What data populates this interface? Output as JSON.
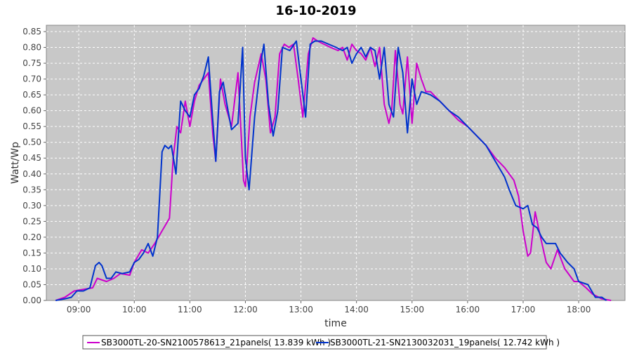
{
  "chart_data": {
    "type": "line",
    "title": "16-10-2019",
    "xlabel": "time",
    "ylabel": "Watt/Wp",
    "x_ticks": [
      "09:00",
      "10:00",
      "11:00",
      "12:00",
      "13:00",
      "14:00",
      "15:00",
      "16:00",
      "17:00",
      "18:00"
    ],
    "xlim": [
      "08:25",
      "18:50"
    ],
    "ylim": [
      0,
      0.87
    ],
    "y_ticks": [
      "0.00",
      "0.05",
      "0.10",
      "0.15",
      "0.20",
      "0.25",
      "0.30",
      "0.35",
      "0.40",
      "0.45",
      "0.50",
      "0.55",
      "0.60",
      "0.65",
      "0.70",
      "0.75",
      "0.80",
      "0.85"
    ],
    "grid": true,
    "legend_placement": "bottom",
    "plot_background": "#c8c8c8",
    "series": [
      {
        "name": "SB3000TL-20-SN2100578613_21panels( 13.839 kWh )",
        "color": "#cc00cc",
        "points": [
          [
            "08:35",
            0.0
          ],
          [
            "08:45",
            0.01
          ],
          [
            "08:55",
            0.03
          ],
          [
            "09:05",
            0.035
          ],
          [
            "09:15",
            0.04
          ],
          [
            "09:20",
            0.07
          ],
          [
            "09:30",
            0.06
          ],
          [
            "09:38",
            0.07
          ],
          [
            "09:45",
            0.085
          ],
          [
            "09:55",
            0.08
          ],
          [
            "10:00",
            0.12
          ],
          [
            "10:08",
            0.16
          ],
          [
            "10:15",
            0.15
          ],
          [
            "10:22",
            0.18
          ],
          [
            "10:30",
            0.22
          ],
          [
            "10:38",
            0.26
          ],
          [
            "10:42",
            0.45
          ],
          [
            "10:46",
            0.55
          ],
          [
            "10:50",
            0.53
          ],
          [
            "10:55",
            0.63
          ],
          [
            "11:00",
            0.55
          ],
          [
            "11:05",
            0.63
          ],
          [
            "11:10",
            0.68
          ],
          [
            "11:15",
            0.7
          ],
          [
            "11:20",
            0.72
          ],
          [
            "11:25",
            0.52
          ],
          [
            "11:28",
            0.44
          ],
          [
            "11:33",
            0.7
          ],
          [
            "11:38",
            0.62
          ],
          [
            "11:45",
            0.55
          ],
          [
            "11:52",
            0.72
          ],
          [
            "11:58",
            0.38
          ],
          [
            "12:00",
            0.36
          ],
          [
            "12:05",
            0.58
          ],
          [
            "12:10",
            0.69
          ],
          [
            "12:17",
            0.78
          ],
          [
            "12:22",
            0.7
          ],
          [
            "12:27",
            0.53
          ],
          [
            "12:32",
            0.58
          ],
          [
            "12:37",
            0.78
          ],
          [
            "12:42",
            0.81
          ],
          [
            "12:47",
            0.8
          ],
          [
            "12:52",
            0.81
          ],
          [
            "12:57",
            0.7
          ],
          [
            "13:02",
            0.58
          ],
          [
            "13:08",
            0.78
          ],
          [
            "13:13",
            0.83
          ],
          [
            "13:18",
            0.82
          ],
          [
            "13:25",
            0.81
          ],
          [
            "13:32",
            0.8
          ],
          [
            "13:40",
            0.79
          ],
          [
            "13:45",
            0.8
          ],
          [
            "13:50",
            0.76
          ],
          [
            "13:55",
            0.81
          ],
          [
            "14:00",
            0.79
          ],
          [
            "14:05",
            0.78
          ],
          [
            "14:10",
            0.76
          ],
          [
            "14:15",
            0.8
          ],
          [
            "14:20",
            0.74
          ],
          [
            "14:25",
            0.8
          ],
          [
            "14:30",
            0.62
          ],
          [
            "14:35",
            0.56
          ],
          [
            "14:38",
            0.6
          ],
          [
            "14:42",
            0.79
          ],
          [
            "14:47",
            0.62
          ],
          [
            "14:50",
            0.59
          ],
          [
            "14:55",
            0.77
          ],
          [
            "15:00",
            0.56
          ],
          [
            "15:05",
            0.75
          ],
          [
            "15:10",
            0.7
          ],
          [
            "15:15",
            0.66
          ],
          [
            "15:20",
            0.66
          ],
          [
            "15:30",
            0.63
          ],
          [
            "15:40",
            0.6
          ],
          [
            "15:50",
            0.57
          ],
          [
            "16:00",
            0.55
          ],
          [
            "16:10",
            0.52
          ],
          [
            "16:20",
            0.49
          ],
          [
            "16:30",
            0.45
          ],
          [
            "16:40",
            0.42
          ],
          [
            "16:50",
            0.38
          ],
          [
            "16:55",
            0.33
          ],
          [
            "17:00",
            0.22
          ],
          [
            "17:05",
            0.14
          ],
          [
            "17:08",
            0.15
          ],
          [
            "17:13",
            0.28
          ],
          [
            "17:18",
            0.21
          ],
          [
            "17:25",
            0.12
          ],
          [
            "17:30",
            0.1
          ],
          [
            "17:37",
            0.16
          ],
          [
            "17:45",
            0.1
          ],
          [
            "17:55",
            0.06
          ],
          [
            "18:00",
            0.06
          ],
          [
            "18:08",
            0.04
          ],
          [
            "18:15",
            0.02
          ],
          [
            "18:25",
            0.005
          ],
          [
            "18:35",
            0.0
          ]
        ]
      },
      {
        "name": "SB3000TL-21-SN2130032031_19panels( 12.742 kWh )",
        "color": "#0033cc",
        "points": [
          [
            "08:35",
            0.0
          ],
          [
            "08:45",
            0.005
          ],
          [
            "08:52",
            0.01
          ],
          [
            "08:58",
            0.03
          ],
          [
            "09:05",
            0.03
          ],
          [
            "09:12",
            0.04
          ],
          [
            "09:18",
            0.11
          ],
          [
            "09:22",
            0.12
          ],
          [
            "09:25",
            0.11
          ],
          [
            "09:30",
            0.07
          ],
          [
            "09:35",
            0.07
          ],
          [
            "09:40",
            0.09
          ],
          [
            "09:47",
            0.085
          ],
          [
            "09:55",
            0.09
          ],
          [
            "10:00",
            0.12
          ],
          [
            "10:05",
            0.13
          ],
          [
            "10:10",
            0.15
          ],
          [
            "10:15",
            0.18
          ],
          [
            "10:20",
            0.14
          ],
          [
            "10:25",
            0.2
          ],
          [
            "10:30",
            0.47
          ],
          [
            "10:33",
            0.49
          ],
          [
            "10:37",
            0.48
          ],
          [
            "10:40",
            0.49
          ],
          [
            "10:45",
            0.4
          ],
          [
            "10:50",
            0.63
          ],
          [
            "10:55",
            0.6
          ],
          [
            "11:00",
            0.58
          ],
          [
            "11:05",
            0.65
          ],
          [
            "11:10",
            0.67
          ],
          [
            "11:15",
            0.71
          ],
          [
            "11:20",
            0.77
          ],
          [
            "11:24",
            0.6
          ],
          [
            "11:28",
            0.44
          ],
          [
            "11:32",
            0.66
          ],
          [
            "11:36",
            0.69
          ],
          [
            "11:40",
            0.62
          ],
          [
            "11:45",
            0.54
          ],
          [
            "11:52",
            0.56
          ],
          [
            "11:57",
            0.8
          ],
          [
            "12:00",
            0.45
          ],
          [
            "12:04",
            0.35
          ],
          [
            "12:10",
            0.58
          ],
          [
            "12:17",
            0.76
          ],
          [
            "12:20",
            0.81
          ],
          [
            "12:25",
            0.62
          ],
          [
            "12:30",
            0.52
          ],
          [
            "12:35",
            0.6
          ],
          [
            "12:40",
            0.8
          ],
          [
            "12:48",
            0.79
          ],
          [
            "12:55",
            0.82
          ],
          [
            "13:00",
            0.7
          ],
          [
            "13:05",
            0.58
          ],
          [
            "13:10",
            0.81
          ],
          [
            "13:15",
            0.82
          ],
          [
            "13:22",
            0.82
          ],
          [
            "13:30",
            0.81
          ],
          [
            "13:38",
            0.8
          ],
          [
            "13:45",
            0.79
          ],
          [
            "13:50",
            0.8
          ],
          [
            "13:55",
            0.75
          ],
          [
            "14:00",
            0.78
          ],
          [
            "14:05",
            0.8
          ],
          [
            "14:10",
            0.77
          ],
          [
            "14:15",
            0.8
          ],
          [
            "14:20",
            0.79
          ],
          [
            "14:25",
            0.7
          ],
          [
            "14:30",
            0.8
          ],
          [
            "14:35",
            0.62
          ],
          [
            "14:40",
            0.58
          ],
          [
            "14:45",
            0.8
          ],
          [
            "14:50",
            0.72
          ],
          [
            "14:55",
            0.53
          ],
          [
            "15:00",
            0.7
          ],
          [
            "15:05",
            0.62
          ],
          [
            "15:10",
            0.66
          ],
          [
            "15:20",
            0.65
          ],
          [
            "15:30",
            0.63
          ],
          [
            "15:40",
            0.6
          ],
          [
            "15:50",
            0.58
          ],
          [
            "16:00",
            0.55
          ],
          [
            "16:10",
            0.52
          ],
          [
            "16:20",
            0.49
          ],
          [
            "16:30",
            0.44
          ],
          [
            "16:40",
            0.39
          ],
          [
            "16:45",
            0.35
          ],
          [
            "16:52",
            0.3
          ],
          [
            "17:00",
            0.29
          ],
          [
            "17:05",
            0.3
          ],
          [
            "17:10",
            0.24
          ],
          [
            "17:15",
            0.23
          ],
          [
            "17:20",
            0.2
          ],
          [
            "17:25",
            0.18
          ],
          [
            "17:35",
            0.18
          ],
          [
            "17:40",
            0.15
          ],
          [
            "17:48",
            0.12
          ],
          [
            "17:55",
            0.1
          ],
          [
            "18:00",
            0.06
          ],
          [
            "18:10",
            0.05
          ],
          [
            "18:18",
            0.01
          ],
          [
            "18:25",
            0.01
          ],
          [
            "18:30",
            0.0
          ]
        ]
      }
    ]
  }
}
